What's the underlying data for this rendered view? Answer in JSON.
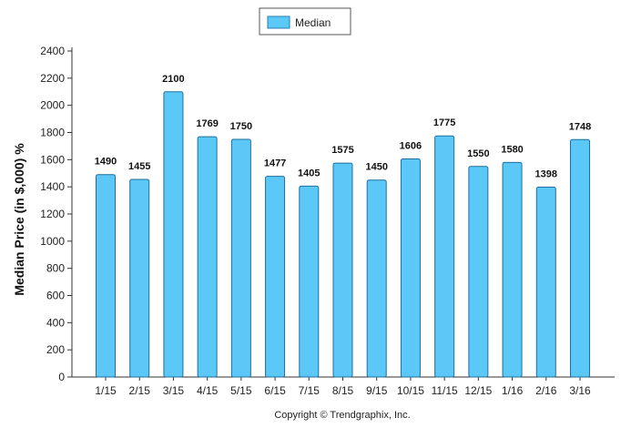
{
  "chart_data": {
    "type": "bar",
    "categories": [
      "1/15",
      "2/15",
      "3/15",
      "4/15",
      "5/15",
      "6/15",
      "7/15",
      "8/15",
      "9/15",
      "10/15",
      "11/15",
      "12/15",
      "1/16",
      "2/16",
      "3/16"
    ],
    "series": [
      {
        "name": "Median",
        "values": [
          1490,
          1455,
          2100,
          1769,
          1750,
          1477,
          1405,
          1575,
          1450,
          1606,
          1775,
          1550,
          1580,
          1398,
          1748
        ],
        "color": "#5bc8f8"
      }
    ],
    "title": "",
    "xlabel": "",
    "ylabel": "Median Price (in $,000) %",
    "ylim": [
      0,
      2400
    ],
    "yticks": [
      0,
      200,
      400,
      600,
      800,
      1000,
      1200,
      1400,
      1600,
      1800,
      2000,
      2200,
      2400
    ],
    "grid": false,
    "legend_position": "top-center",
    "data_labels": true,
    "footer": "Copyright © Trendgraphix, Inc."
  }
}
